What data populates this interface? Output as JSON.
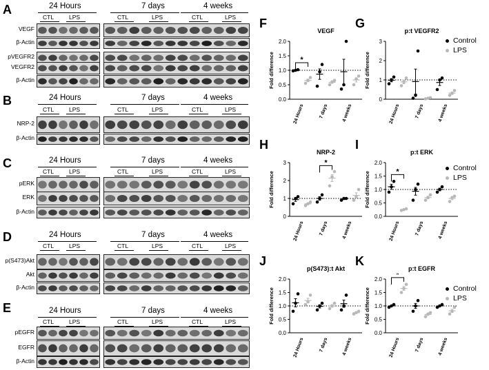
{
  "panels_left": {
    "A": {
      "letter": "A",
      "h24": "24 Hours",
      "h7": "7 days",
      "h4": "4 weeks",
      "ctl": "CTL",
      "lps": "LPS",
      "rows": [
        "VEGF",
        "β-Actin",
        "pVEGFR2",
        "VEGFR2",
        "β-Actin"
      ]
    },
    "B": {
      "letter": "B",
      "h24": "24 Hours",
      "h7": "7 days",
      "h4": "4 weeks",
      "ctl": "CTL",
      "lps": "LPS",
      "rows": [
        "NRP-2",
        "β-Actin"
      ]
    },
    "C": {
      "letter": "C",
      "h24": "24 Hours",
      "h7": "7 days",
      "h4": "4 weeks",
      "ctl": "CTL",
      "lps": "LPS",
      "rows": [
        "pERK",
        "ERK",
        "β-Actin"
      ]
    },
    "D": {
      "letter": "D",
      "h24": "24 Hours",
      "h7": "7 days",
      "h4": "4 weeks",
      "ctl": "CTL",
      "lps": "LPS",
      "rows": [
        "p(S473)Akt",
        "Akt",
        "β-Actin"
      ]
    },
    "E": {
      "letter": "E",
      "h24": "24 Hours",
      "h7": "7 days",
      "h4": "4 weeks",
      "ctl": "CTL",
      "lps": "LPS",
      "rows": [
        "pEGFR",
        "EGFR",
        "β-Actin"
      ]
    }
  },
  "graphs": {
    "F": {
      "letter": "F",
      "title": "VEGF",
      "ylabel": "Fold difference",
      "yticks": [
        "0.0",
        "0.5",
        "1.0",
        "1.5",
        "2.0"
      ],
      "ymax": 2.0,
      "xlabels": [
        "24 Hours",
        "7 days",
        "4 weeks"
      ],
      "sig": "*",
      "control": [
        [
          0.98,
          1.0,
          1.02
        ],
        [
          0.45,
          0.95,
          1.2
        ],
        [
          0.35,
          0.5,
          2.0
        ]
      ],
      "lps": [
        [
          0.55,
          0.65,
          0.75
        ],
        [
          0.5,
          0.6,
          0.65
        ],
        [
          0.5,
          0.7,
          0.8
        ]
      ]
    },
    "G": {
      "letter": "G",
      "title": "p:t VEGFR2",
      "ylabel": "Fold difference",
      "yticks": [
        "0",
        "1",
        "2",
        "3"
      ],
      "ymax": 3,
      "xlabels": [
        "24 Hours",
        "7 days",
        "4 weeks"
      ],
      "control": [
        [
          0.8,
          1.0,
          1.15
        ],
        [
          0.05,
          0.2,
          2.5
        ],
        [
          0.5,
          1.0,
          1.1
        ]
      ],
      "lps": [
        [
          0.7,
          0.9,
          1.1
        ],
        [
          0.02,
          0.05,
          0.08
        ],
        [
          0.2,
          0.3,
          0.45
        ]
      ]
    },
    "H": {
      "letter": "H",
      "title": "NRP-2",
      "ylabel": "Fold difference",
      "yticks": [
        "0",
        "1",
        "2",
        "3"
      ],
      "ymax": 3,
      "xlabels": [
        "24 Hours",
        "7 days",
        "4 weeks"
      ],
      "sig": "*",
      "control": [
        [
          0.7,
          1.0,
          1.1
        ],
        [
          0.8,
          1.0,
          1.2
        ],
        [
          0.9,
          1.0,
          1.0
        ]
      ],
      "lps": [
        [
          0.6,
          0.7,
          0.8
        ],
        [
          1.7,
          2.2,
          2.5
        ],
        [
          0.9,
          1.1,
          1.5
        ]
      ]
    },
    "I": {
      "letter": "I",
      "title": "p:t ERK",
      "ylabel": "Fold difference",
      "yticks": [
        "0.0",
        "0.5",
        "1.0",
        "1.5",
        "2.0"
      ],
      "ymax": 2.0,
      "xlabels": [
        "24 Hours",
        "7 days",
        "4 weeks"
      ],
      "sig": "*",
      "control": [
        [
          0.9,
          1.1,
          1.3
        ],
        [
          0.6,
          1.0,
          1.2
        ],
        [
          0.9,
          1.0,
          1.1
        ]
      ],
      "lps": [
        [
          0.22,
          0.25,
          0.28
        ],
        [
          0.6,
          0.7,
          0.8
        ],
        [
          0.55,
          0.7,
          0.75
        ]
      ]
    },
    "J": {
      "letter": "J",
      "title": "p(S473):t Akt",
      "ylabel": "Fold difference",
      "yticks": [
        "0.0",
        "0.5",
        "1.0",
        "1.5",
        "2.0"
      ],
      "ymax": 2.0,
      "xlabels": [
        "24 Hours",
        "7 days",
        "4 weeks"
      ],
      "control": [
        [
          0.8,
          1.1,
          1.45
        ],
        [
          0.85,
          1.0,
          1.1
        ],
        [
          0.85,
          1.0,
          1.4
        ]
      ],
      "lps": [
        [
          1.05,
          1.15,
          1.4
        ],
        [
          0.9,
          1.0,
          1.1
        ],
        [
          0.7,
          0.75,
          0.8
        ]
      ]
    },
    "K": {
      "letter": "K",
      "title": "p:t EGFR",
      "ylabel": "Fold difference",
      "yticks": [
        "0.0",
        "0.5",
        "1.0",
        "1.5",
        "2.0"
      ],
      "ymax": 2.0,
      "xlabels": [
        "24 Hours",
        "7 days",
        "4 weeks"
      ],
      "sig": "*",
      "control": [
        [
          0.95,
          1.0,
          1.05
        ],
        [
          0.8,
          1.0,
          1.2
        ],
        [
          0.95,
          1.0,
          1.05
        ]
      ],
      "lps": [
        [
          1.5,
          1.65,
          1.8
        ],
        [
          0.6,
          0.7,
          0.75
        ],
        [
          0.7,
          0.8,
          0.95
        ]
      ]
    }
  },
  "legend": {
    "control": "Control",
    "lps": "LPS"
  },
  "colors": {
    "control": "#000000",
    "lps": "#b8b8b8"
  }
}
